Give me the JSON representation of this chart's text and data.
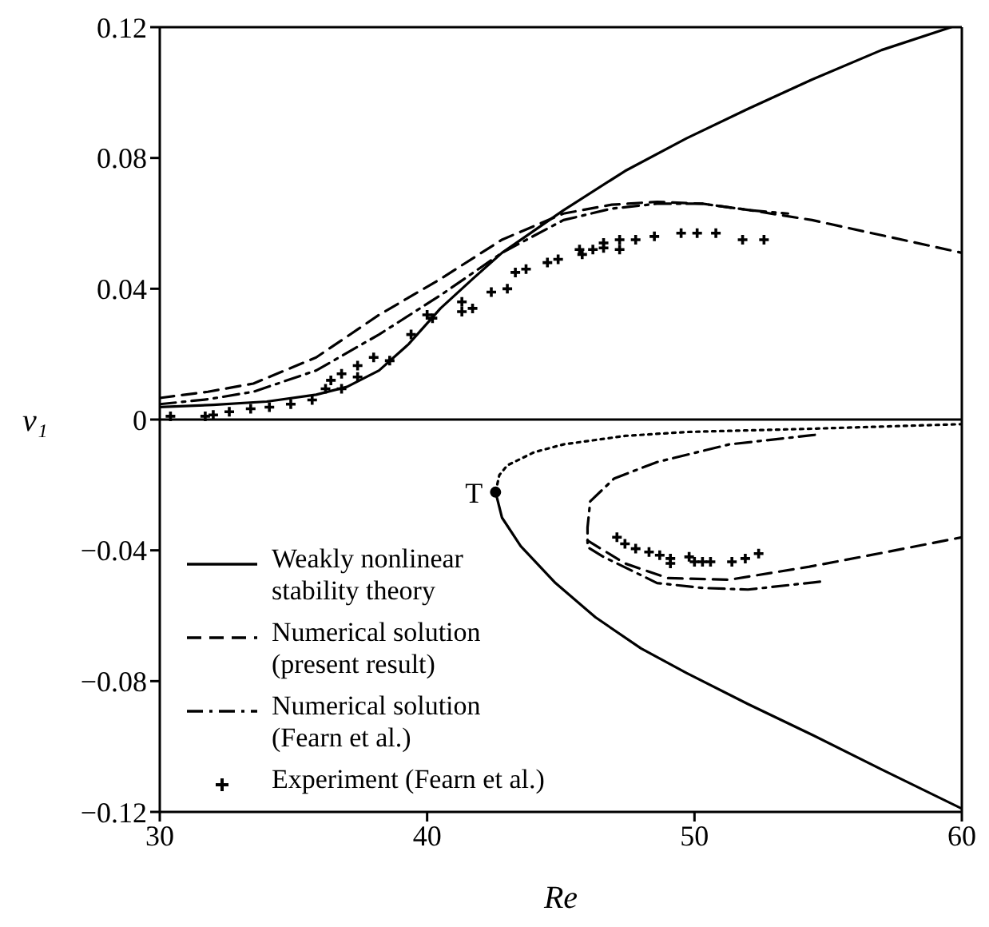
{
  "chart_data": {
    "type": "line",
    "xlabel": "Re",
    "ylabel": "v₁",
    "xlim": [
      30,
      60
    ],
    "ylim": [
      -0.12,
      0.12
    ],
    "xticks": [
      30,
      40,
      50,
      60
    ],
    "yticks": [
      {
        "value": -0.12,
        "label": "−0.12"
      },
      {
        "value": -0.08,
        "label": "−0.08"
      },
      {
        "value": -0.04,
        "label": "−0.04"
      },
      0,
      0.04,
      0.08,
      0.12
    ],
    "legend": "bottom left",
    "ref_lines": [
      {
        "axis": "y",
        "value": 0
      }
    ],
    "annotations": [
      {
        "text": "T",
        "x": 42.56,
        "y": -0.0222
      }
    ],
    "series": [
      {
        "name": "Weakly nonlinear stability theory",
        "color": "#000000",
        "line_style": "solid",
        "x": [
          30,
          32,
          34,
          35.85,
          37,
          38.2,
          39.3,
          40.5,
          41.7,
          42.8,
          45.1,
          47.4,
          49.7,
          52,
          54.4,
          57,
          59.6
        ],
        "values": [
          0.0038,
          0.0045,
          0.0055,
          0.0076,
          0.01,
          0.015,
          0.023,
          0.034,
          0.043,
          0.051,
          0.064,
          0.076,
          0.086,
          0.095,
          0.104,
          0.113,
          0.12
        ]
      },
      {
        "color": "#000000",
        "line_style": "solid",
        "x": [
          42.56,
          42.8,
          43.5,
          44.8,
          46.3,
          48,
          49.7,
          52,
          54.4,
          57,
          60
        ],
        "values": [
          -0.0222,
          -0.03,
          -0.0387,
          -0.05,
          -0.0605,
          -0.07,
          -0.0775,
          -0.087,
          -0.0964,
          -0.107,
          -0.119
        ]
      },
      {
        "color": "#000000",
        "line_style": "dotted",
        "x": [
          42.56,
          42.7,
          43,
          44,
          45.1,
          47.4,
          49.7,
          54.4,
          60
        ],
        "values": [
          -0.0222,
          -0.017,
          -0.014,
          -0.01,
          -0.0076,
          -0.005,
          -0.0038,
          -0.0028,
          -0.0014
        ]
      },
      {
        "name": "Numerical solution (present result)",
        "color": "#000000",
        "line_style": "dashed",
        "x": [
          30,
          31.8,
          33.5,
          35.85,
          38.2,
          40.5,
          42.8,
          45.1,
          46.9,
          48.6,
          50.3,
          52.1,
          54.4,
          57.2,
          60
        ],
        "values": [
          0.0066,
          0.0085,
          0.011,
          0.019,
          0.032,
          0.043,
          0.055,
          0.063,
          0.0657,
          0.0666,
          0.066,
          0.064,
          0.061,
          0.056,
          0.051
        ]
      },
      {
        "color": "#000000",
        "line_style": "dashed",
        "x": [
          46,
          47.4,
          49,
          51.3,
          54.3,
          57.2,
          60
        ],
        "values": [
          -0.037,
          -0.044,
          -0.0485,
          -0.049,
          -0.045,
          -0.0405,
          -0.036
        ]
      },
      {
        "name": "Numerical solution (Fearn et al.)",
        "color": "#000000",
        "line_style": "dashdot",
        "x": [
          30,
          31.8,
          33.5,
          35.85,
          38.2,
          40.5,
          42.8,
          45.1,
          46.9,
          48.6,
          50.3,
          52.1,
          53.5
        ],
        "values": [
          0.0047,
          0.0062,
          0.0085,
          0.015,
          0.026,
          0.038,
          0.051,
          0.061,
          0.0645,
          0.066,
          0.066,
          0.064,
          0.063
        ]
      },
      {
        "color": "#000000",
        "line_style": "dashdot",
        "x": [
          54.5,
          51.3,
          48.6,
          47,
          46.1,
          46,
          46,
          46.6,
          48.6,
          50.3,
          52,
          54.8
        ],
        "values": [
          -0.0047,
          -0.0076,
          -0.013,
          -0.018,
          -0.025,
          -0.033,
          -0.039,
          -0.042,
          -0.05,
          -0.0515,
          -0.052,
          -0.0495
        ]
      },
      {
        "name": "Experiment (Fearn et al.)",
        "type": "scatter",
        "color": "#000000",
        "marker": "cross",
        "x": [
          30.4,
          31.7,
          32,
          32.6,
          33.4,
          34.1,
          34.9,
          35.7,
          36.2,
          36.8,
          36.4,
          36.8,
          37.4,
          37.4,
          38,
          38.6,
          39.4,
          40,
          40.2,
          41.3,
          41.3,
          41.7,
          42.4,
          43,
          43.3,
          43.7,
          44.5,
          44.9,
          45.7,
          45.8,
          46.2,
          46.6,
          46.6,
          47.2,
          47.2,
          47.8,
          48.5,
          49.5,
          50.1,
          50.8,
          51.8,
          52.6,
          47.1,
          47.4,
          47.8,
          48.3,
          48.7,
          49.1,
          49.1,
          49.8,
          50,
          50.3,
          50.6,
          51.4,
          51.9,
          52.4
        ],
        "values": [
          0.001,
          0.001,
          0.0014,
          0.0024,
          0.0033,
          0.0038,
          0.0047,
          0.006,
          0.0094,
          0.0094,
          0.012,
          0.014,
          0.013,
          0.0165,
          0.019,
          0.018,
          0.026,
          0.032,
          0.031,
          0.036,
          0.033,
          0.034,
          0.039,
          0.04,
          0.045,
          0.046,
          0.048,
          0.049,
          0.052,
          0.0505,
          0.052,
          0.054,
          0.0525,
          0.055,
          0.052,
          0.055,
          0.056,
          0.057,
          0.057,
          0.057,
          0.055,
          0.055,
          -0.036,
          -0.038,
          -0.0395,
          -0.0405,
          -0.0415,
          -0.0425,
          -0.044,
          -0.042,
          -0.0435,
          -0.0435,
          -0.0435,
          -0.0435,
          -0.0425,
          -0.041
        ]
      }
    ]
  }
}
